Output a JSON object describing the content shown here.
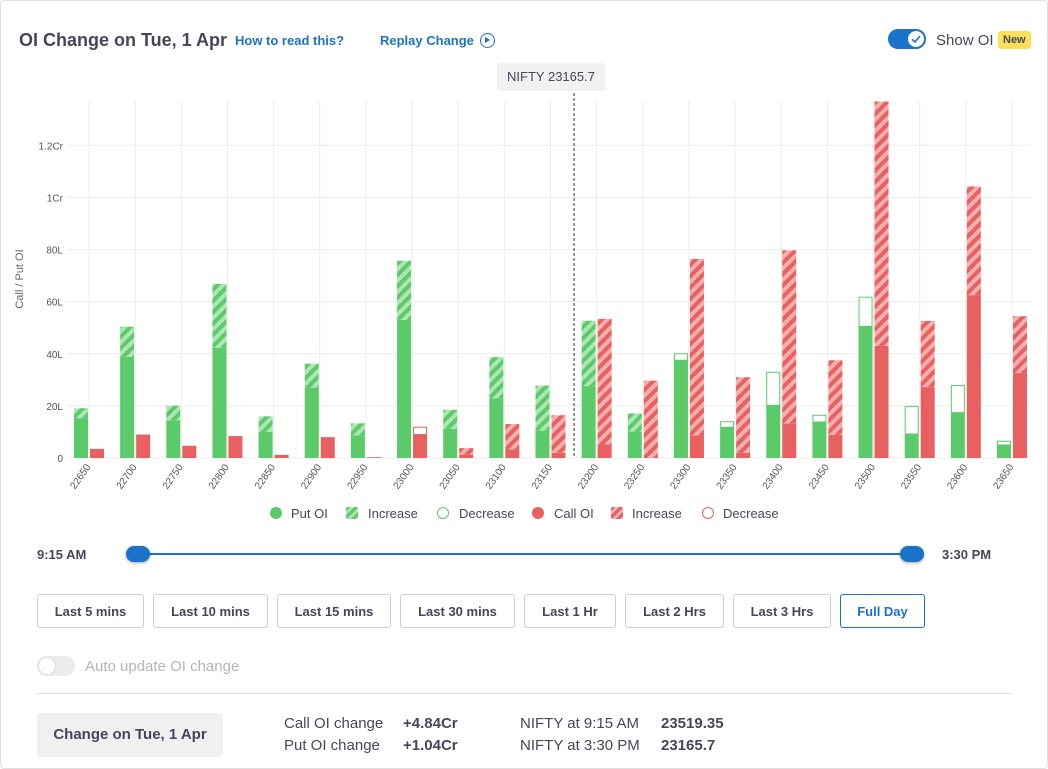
{
  "header": {
    "title": "OI Change on Tue, 1 Apr",
    "how_to_read": "How to read this?",
    "replay": "Replay Change",
    "show_oi_label": "Show OI",
    "new_badge": "New"
  },
  "tooltip": "NIFTY 23165.7",
  "colors": {
    "put": "#5bcb6a",
    "call": "#e8605f",
    "accent": "#1a73c8"
  },
  "chart_data": {
    "type": "bar",
    "ylabel": "Call / Put OI",
    "ylim": [
      0,
      13700000
    ],
    "yticks": [
      {
        "value": 0,
        "label": "0"
      },
      {
        "value": 2000000,
        "label": "20L"
      },
      {
        "value": 4000000,
        "label": "40L"
      },
      {
        "value": 6000000,
        "label": "60L"
      },
      {
        "value": 8000000,
        "label": "80L"
      },
      {
        "value": 10000000,
        "label": "1Cr"
      },
      {
        "value": 12000000,
        "label": "1.2Cr"
      }
    ],
    "categories": [
      "22650",
      "22700",
      "22750",
      "22800",
      "22850",
      "22900",
      "22950",
      "23000",
      "23050",
      "23100",
      "23150",
      "23200",
      "23250",
      "23300",
      "23350",
      "23400",
      "23450",
      "23500",
      "23550",
      "23600",
      "23650"
    ],
    "spot_marker": {
      "between": [
        "23150",
        "23200"
      ],
      "fraction": 0.0
    },
    "series": [
      {
        "name": "Put OI",
        "side": "put",
        "base": [
          1530000,
          3880000,
          1450000,
          4230000,
          1000000,
          2700000,
          870000,
          5300000,
          1120000,
          2290000,
          1050000,
          2760000,
          1020000,
          3750000,
          1180000,
          2020000,
          1380000,
          5050000,
          920000,
          1740000,
          500000
        ],
        "change": [
          380000,
          1160000,
          560000,
          2450000,
          600000,
          920000,
          460000,
          2270000,
          730000,
          1580000,
          1730000,
          2510000,
          690000,
          270000,
          230000,
          1290000,
          280000,
          1140000,
          1080000,
          1060000,
          160000
        ]
      },
      {
        "name": "Call OI",
        "side": "call",
        "base": [
          350000,
          900000,
          470000,
          840000,
          120000,
          800000,
          30000,
          900000,
          130000,
          330000,
          200000,
          520000,
          0,
          870000,
          200000,
          1330000,
          890000,
          4300000,
          2720000,
          6250000,
          3260000
        ],
        "change": [
          0,
          0,
          0,
          0,
          0,
          0,
          0,
          300000,
          250000,
          970000,
          1440000,
          4820000,
          2970000,
          6770000,
          2900000,
          6640000,
          2860000,
          9380000,
          2540000,
          4170000,
          2180000
        ]
      }
    ],
    "increase_side": {
      "put": [
        true,
        true,
        true,
        true,
        true,
        true,
        true,
        true,
        true,
        true,
        true,
        true,
        true,
        false,
        false,
        false,
        false,
        false,
        false,
        false,
        false
      ],
      "call": [
        false,
        false,
        false,
        false,
        false,
        false,
        false,
        false,
        true,
        true,
        true,
        true,
        true,
        true,
        true,
        true,
        true,
        true,
        true,
        true,
        true
      ]
    },
    "legend": [
      {
        "label": "Put OI",
        "kind": "put-solid"
      },
      {
        "label": "Increase",
        "kind": "put-hatch"
      },
      {
        "label": "Decrease",
        "kind": "put-outline"
      },
      {
        "label": "Call OI",
        "kind": "call-solid"
      },
      {
        "label": "Increase",
        "kind": "call-hatch"
      },
      {
        "label": "Decrease",
        "kind": "call-outline"
      }
    ]
  },
  "slider": {
    "start": "9:15 AM",
    "end": "3:30 PM"
  },
  "ranges": [
    "Last 5 mins",
    "Last 10 mins",
    "Last 15 mins",
    "Last 30 mins",
    "Last 1 Hr",
    "Last 2 Hrs",
    "Last 3 Hrs",
    "Full Day"
  ],
  "active_range": "Full Day",
  "auto_update": {
    "label": "Auto update OI change",
    "enabled": false
  },
  "footer": {
    "change_button": "Change on Tue, 1 Apr",
    "call_oi_label": "Call OI change",
    "call_oi_value": "+4.84Cr",
    "put_oi_label": "Put OI change",
    "put_oi_value": "+1.04Cr",
    "nifty_start_label": "NIFTY at 9:15 AM",
    "nifty_start_value": "23519.35",
    "nifty_end_label": "NIFTY at 3:30 PM",
    "nifty_end_value": "23165.7"
  }
}
